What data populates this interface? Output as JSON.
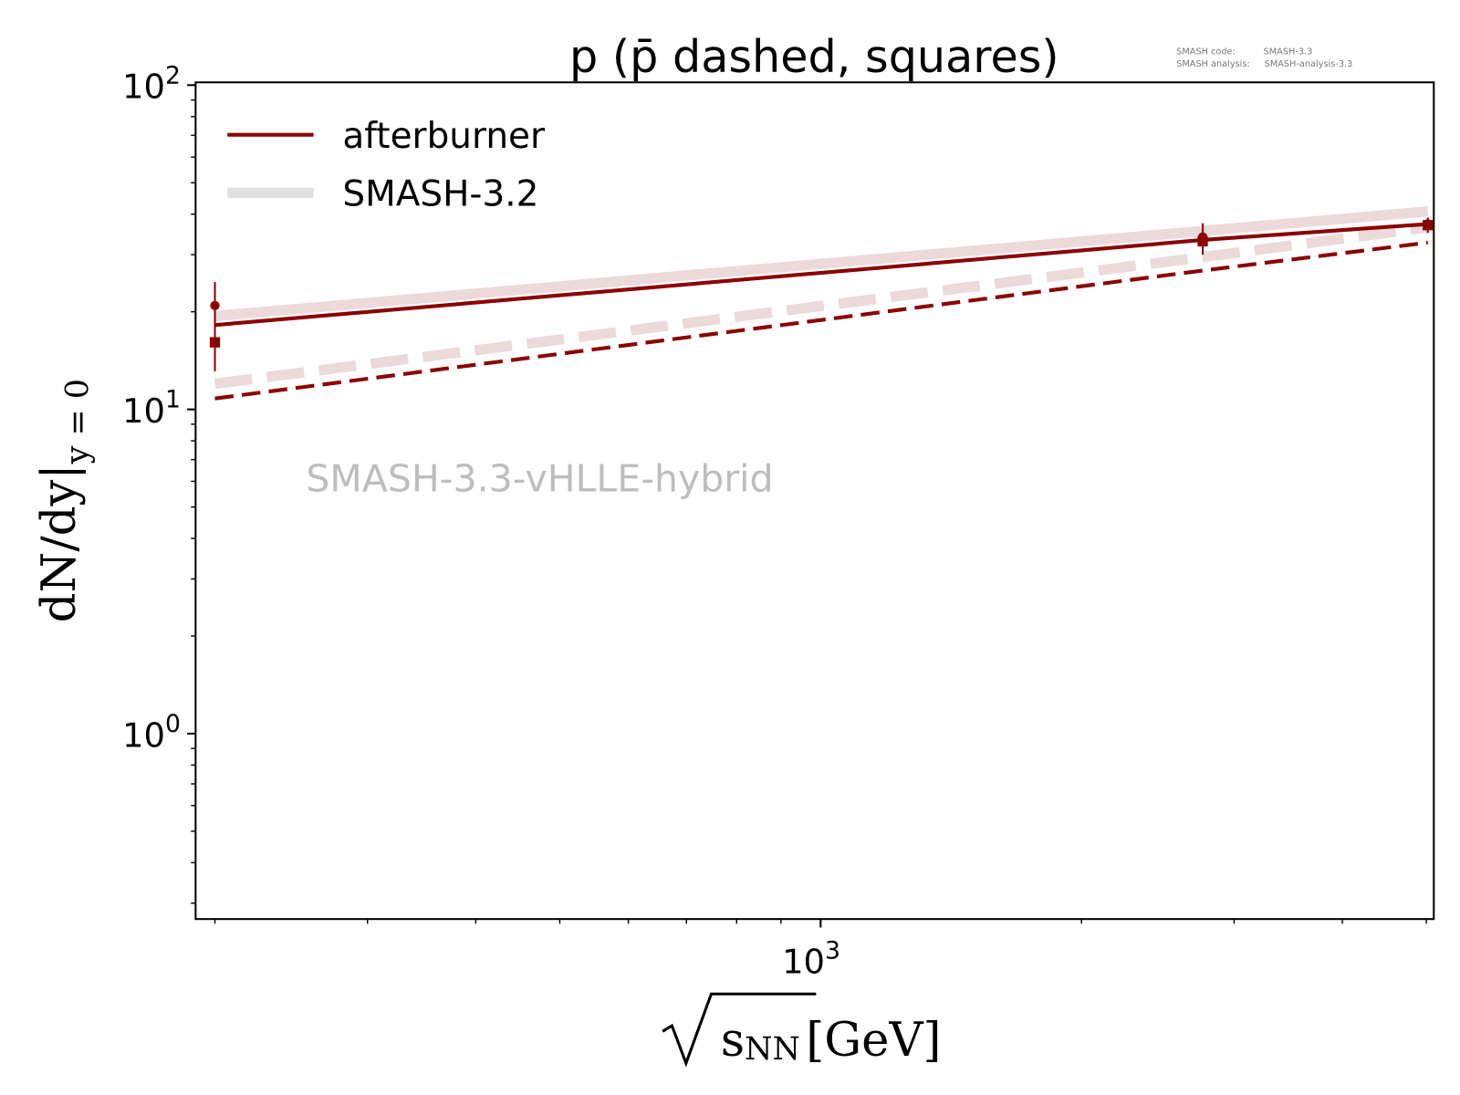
{
  "chart_data": {
    "type": "line",
    "title": "p (p̄ dashed, squares)",
    "xlabel_root": "s",
    "xlabel_sub": "NN",
    "xlabel_unit": "[GeV]",
    "ylabel_main": "dN/dy|",
    "ylabel_sub": "y = 0",
    "xscale": "log",
    "yscale": "log",
    "xlim": [
      190,
      5100
    ],
    "ylim": [
      0.268,
      102
    ],
    "x_ticks": [
      {
        "value": 1000,
        "base": "10",
        "exp": "3"
      }
    ],
    "y_ticks": [
      {
        "value": 1,
        "base": "10",
        "exp": "0"
      },
      {
        "value": 10,
        "base": "10",
        "exp": "1"
      },
      {
        "value": 100,
        "base": "10",
        "exp": "2"
      }
    ],
    "legend": {
      "placement": "top-left",
      "entries": [
        {
          "label": "afterburner",
          "color": "#8b0000"
        },
        {
          "label": "SMASH-3.2",
          "color": "#e0e0e0"
        }
      ]
    },
    "watermark": "SMASH-3.3-vHLLE-hybrid",
    "version_info": [
      {
        "key": "SMASH code:",
        "value": "SMASH-3.3"
      },
      {
        "key": "SMASH analysis:",
        "value": "SMASH-analysis-3.3"
      }
    ],
    "series": [
      {
        "name": "afterburner p",
        "style": "solid",
        "color": "#8b0000",
        "x": [
          200,
          2760,
          5020
        ],
        "y": [
          18.2,
          33.3,
          37.3
        ]
      },
      {
        "name": "afterburner pbar",
        "style": "dashed",
        "color": "#8b0000",
        "x": [
          200,
          2760,
          5020
        ],
        "y": [
          10.8,
          26.8,
          32.7
        ]
      },
      {
        "name": "SMASH-3.2 p",
        "style": "solid-wide",
        "color": "#ecd9da",
        "x": [
          200,
          2760,
          5020
        ],
        "y": [
          19.4,
          35.5,
          40.8
        ]
      },
      {
        "name": "SMASH-3.2 pbar",
        "style": "dashed-wide",
        "color": "#ecd9da",
        "x": [
          200,
          2760,
          5020
        ],
        "y": [
          12.0,
          29.5,
          36.4
        ]
      }
    ],
    "experimental_data": [
      {
        "name": "p data",
        "marker": "circle",
        "color": "#8b0000",
        "points": [
          {
            "x": 200,
            "y": 20.9,
            "ylo": 17.6,
            "yhi": 24.7
          },
          {
            "x": 2760,
            "y": 34.0,
            "ylo": 30.5,
            "yhi": 37.5
          },
          {
            "x": 5020,
            "y": 37.3,
            "ylo": 35.5,
            "yhi": 39.0
          }
        ]
      },
      {
        "name": "pbar data",
        "marker": "square",
        "color": "#8b0000",
        "points": [
          {
            "x": 200,
            "y": 16.1,
            "ylo": 13.1,
            "yhi": 19.5
          },
          {
            "x": 2760,
            "y": 33.0,
            "ylo": 30.0,
            "yhi": 36.0
          },
          {
            "x": 5020,
            "y": 37.0,
            "ylo": 35.0,
            "yhi": 39.0
          }
        ]
      }
    ]
  }
}
